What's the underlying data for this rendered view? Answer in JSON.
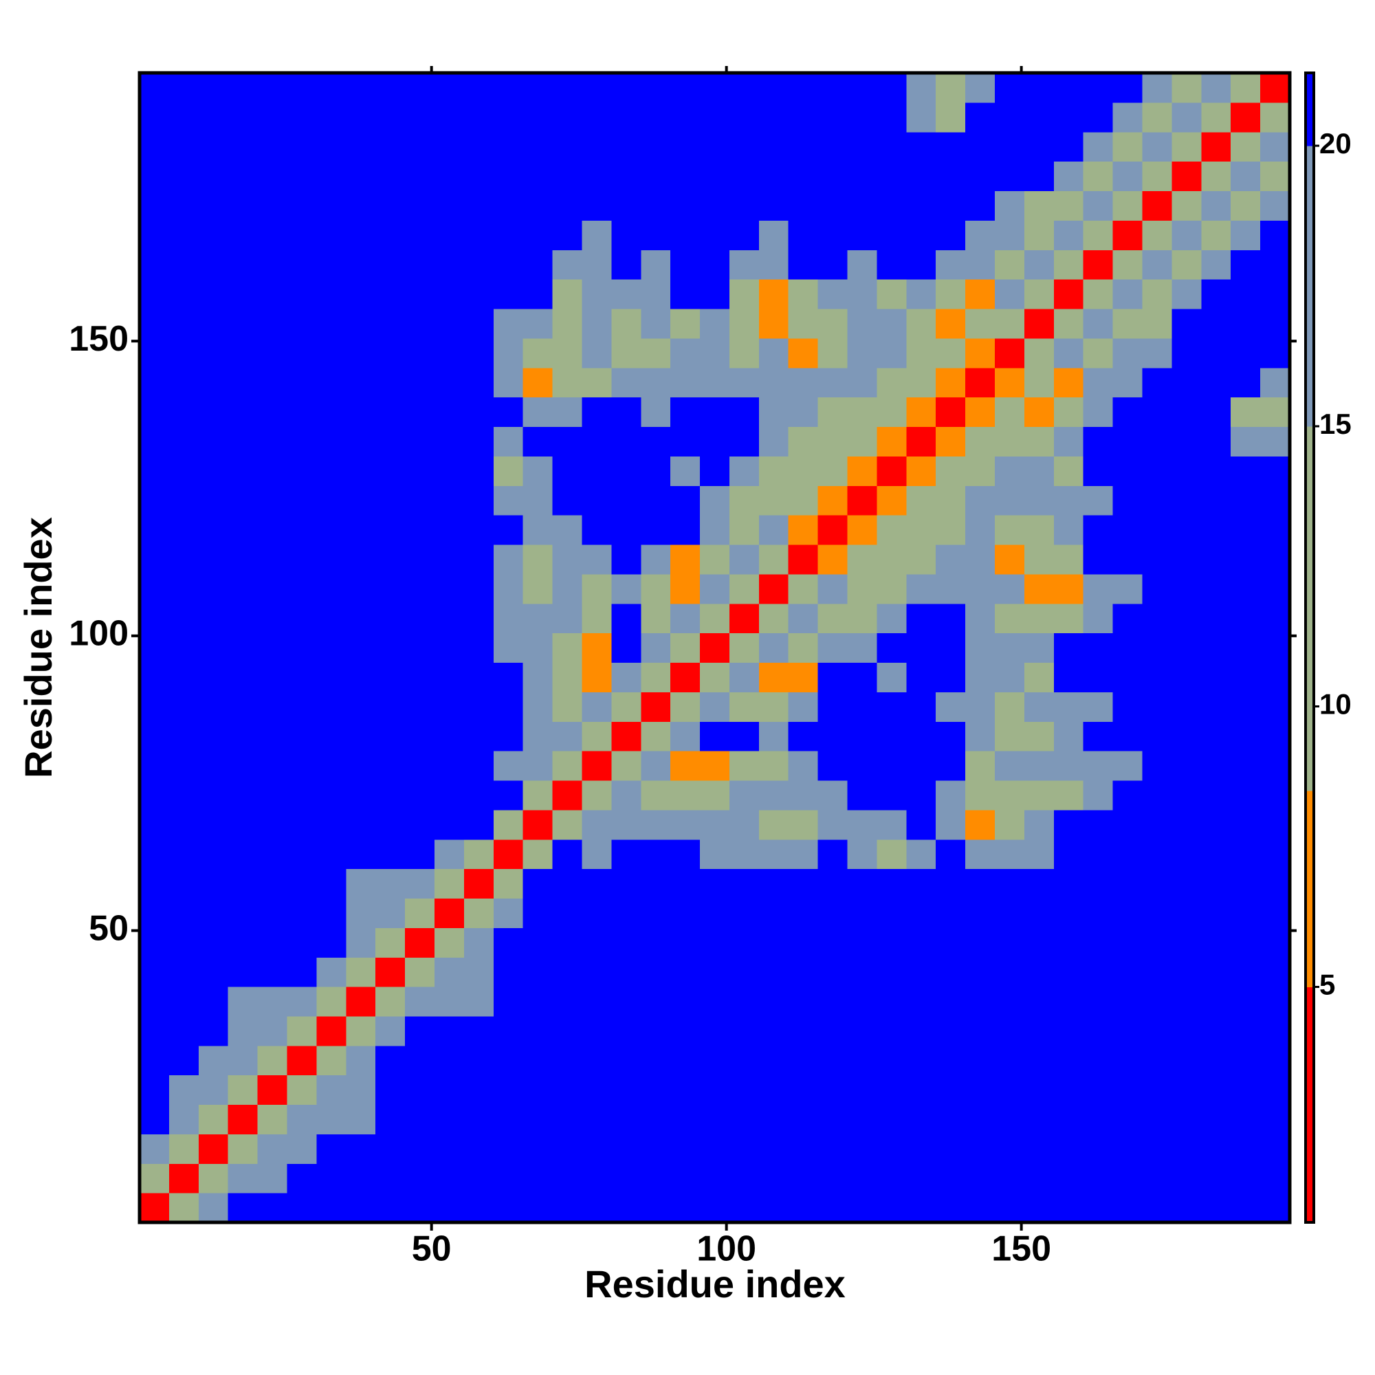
{
  "chart_data": {
    "type": "heatmap",
    "xlabel": "Residue index",
    "ylabel": "Residue index",
    "xlim": [
      0.5,
      195.5
    ],
    "ylim": [
      0.5,
      195.5
    ],
    "xticks": [
      50,
      100,
      150
    ],
    "yticks": [
      50,
      100,
      150
    ],
    "colorbar": {
      "levels": [
        0.8,
        5,
        8.5,
        15,
        20,
        21.3
      ],
      "colors": [
        "#ff0000",
        "#ff8c00",
        "#9fb38a",
        "#7e98b8",
        "#0000ff"
      ],
      "ticks": [
        5,
        10,
        15,
        20
      ]
    },
    "z": [
      [
        3,
        12,
        17,
        21,
        21,
        21,
        21,
        21,
        21,
        21,
        21,
        21,
        21,
        21,
        21,
        21,
        21,
        21,
        21,
        21,
        21,
        21,
        21,
        21,
        21,
        21,
        21,
        21,
        21,
        21,
        21,
        21,
        21,
        21,
        21,
        21,
        21,
        21,
        21
      ],
      [
        12,
        3,
        12,
        17,
        17,
        21,
        21,
        21,
        21,
        21,
        21,
        21,
        21,
        21,
        21,
        21,
        21,
        21,
        21,
        21,
        21,
        21,
        21,
        21,
        21,
        21,
        21,
        21,
        21,
        21,
        21,
        21,
        21,
        21,
        21,
        21,
        21,
        21,
        21
      ],
      [
        17,
        12,
        3,
        12,
        17,
        17,
        21,
        21,
        21,
        21,
        21,
        21,
        21,
        21,
        21,
        21,
        21,
        21,
        21,
        21,
        21,
        21,
        21,
        21,
        21,
        21,
        21,
        21,
        21,
        21,
        21,
        21,
        21,
        21,
        21,
        21,
        21,
        21,
        21
      ],
      [
        21,
        17,
        12,
        3,
        12,
        17,
        17,
        17,
        21,
        21,
        21,
        21,
        21,
        21,
        21,
        21,
        21,
        21,
        21,
        21,
        21,
        21,
        21,
        21,
        21,
        21,
        21,
        21,
        21,
        21,
        21,
        21,
        21,
        21,
        21,
        21,
        21,
        21,
        21
      ],
      [
        21,
        17,
        17,
        12,
        3,
        12,
        17,
        17,
        21,
        21,
        21,
        21,
        21,
        21,
        21,
        21,
        21,
        21,
        21,
        21,
        21,
        21,
        21,
        21,
        21,
        21,
        21,
        21,
        21,
        21,
        21,
        21,
        21,
        21,
        21,
        21,
        21,
        21,
        21
      ],
      [
        21,
        21,
        17,
        17,
        12,
        3,
        12,
        17,
        21,
        21,
        21,
        21,
        21,
        21,
        21,
        21,
        21,
        21,
        21,
        21,
        21,
        21,
        21,
        21,
        21,
        21,
        21,
        21,
        21,
        21,
        21,
        21,
        21,
        21,
        21,
        21,
        21,
        21,
        21
      ],
      [
        21,
        21,
        21,
        17,
        17,
        12,
        3,
        12,
        17,
        21,
        21,
        21,
        21,
        21,
        21,
        21,
        21,
        21,
        21,
        21,
        21,
        21,
        21,
        21,
        21,
        21,
        21,
        21,
        21,
        21,
        21,
        21,
        21,
        21,
        21,
        21,
        21,
        21,
        21
      ],
      [
        21,
        21,
        21,
        17,
        17,
        17,
        12,
        3,
        12,
        17,
        17,
        17,
        21,
        21,
        21,
        21,
        21,
        21,
        21,
        21,
        21,
        21,
        21,
        21,
        21,
        21,
        21,
        21,
        21,
        21,
        21,
        21,
        21,
        21,
        21,
        21,
        21,
        21,
        21
      ],
      [
        21,
        21,
        21,
        21,
        21,
        21,
        17,
        12,
        3,
        12,
        17,
        17,
        21,
        21,
        21,
        21,
        21,
        21,
        21,
        21,
        21,
        21,
        21,
        21,
        21,
        21,
        21,
        21,
        21,
        21,
        21,
        21,
        21,
        21,
        21,
        21,
        21,
        21,
        21
      ],
      [
        21,
        21,
        21,
        21,
        21,
        21,
        21,
        17,
        12,
        3,
        12,
        17,
        21,
        21,
        21,
        21,
        21,
        21,
        21,
        21,
        21,
        21,
        21,
        21,
        21,
        21,
        21,
        21,
        21,
        21,
        21,
        21,
        21,
        21,
        21,
        21,
        21,
        21,
        21
      ],
      [
        21,
        21,
        21,
        21,
        21,
        21,
        21,
        17,
        17,
        12,
        3,
        12,
        17,
        21,
        21,
        21,
        21,
        21,
        21,
        21,
        21,
        21,
        21,
        21,
        21,
        21,
        21,
        21,
        21,
        21,
        21,
        21,
        21,
        21,
        21,
        21,
        21,
        21,
        21
      ],
      [
        21,
        21,
        21,
        21,
        21,
        21,
        21,
        17,
        17,
        17,
        12,
        3,
        12,
        21,
        21,
        21,
        21,
        21,
        21,
        21,
        21,
        21,
        21,
        21,
        21,
        21,
        21,
        21,
        21,
        21,
        21,
        21,
        21,
        21,
        21,
        21,
        21,
        21,
        21
      ],
      [
        21,
        21,
        21,
        21,
        21,
        21,
        21,
        21,
        21,
        21,
        17,
        12,
        3,
        12,
        21,
        17,
        21,
        21,
        21,
        17,
        17,
        17,
        17,
        21,
        17,
        12,
        17,
        21,
        17,
        17,
        17,
        21,
        21,
        21,
        21,
        21,
        21,
        21,
        21
      ],
      [
        21,
        21,
        21,
        21,
        21,
        21,
        21,
        21,
        21,
        21,
        21,
        21,
        12,
        3,
        12,
        17,
        17,
        17,
        17,
        17,
        17,
        12,
        12,
        17,
        17,
        17,
        21,
        17,
        7,
        12,
        17,
        21,
        21,
        21,
        21,
        21,
        21,
        21,
        21
      ],
      [
        21,
        21,
        21,
        21,
        21,
        21,
        21,
        21,
        21,
        21,
        21,
        21,
        21,
        12,
        3,
        12,
        17,
        12,
        12,
        12,
        17,
        17,
        17,
        17,
        21,
        21,
        21,
        17,
        12,
        12,
        12,
        12,
        17,
        21,
        21,
        21,
        21,
        21,
        21
      ],
      [
        21,
        21,
        21,
        21,
        21,
        21,
        21,
        21,
        21,
        21,
        21,
        21,
        17,
        17,
        12,
        3,
        12,
        17,
        7,
        7,
        12,
        12,
        17,
        21,
        21,
        21,
        21,
        21,
        12,
        17,
        17,
        17,
        17,
        17,
        21,
        21,
        21,
        21,
        21
      ],
      [
        21,
        21,
        21,
        21,
        21,
        21,
        21,
        21,
        21,
        21,
        21,
        21,
        21,
        17,
        17,
        12,
        3,
        12,
        17,
        21,
        21,
        17,
        21,
        21,
        21,
        21,
        21,
        21,
        17,
        12,
        12,
        17,
        21,
        21,
        21,
        21,
        21,
        21,
        21
      ],
      [
        21,
        21,
        21,
        21,
        21,
        21,
        21,
        21,
        21,
        21,
        21,
        21,
        21,
        17,
        12,
        17,
        12,
        3,
        12,
        17,
        12,
        12,
        17,
        21,
        21,
        21,
        21,
        17,
        17,
        12,
        17,
        17,
        17,
        21,
        21,
        21,
        21,
        21,
        21
      ],
      [
        21,
        21,
        21,
        21,
        21,
        21,
        21,
        21,
        21,
        21,
        21,
        21,
        21,
        17,
        12,
        7,
        17,
        12,
        3,
        12,
        17,
        7,
        7,
        21,
        21,
        17,
        21,
        21,
        17,
        17,
        12,
        21,
        21,
        21,
        21,
        21,
        21,
        21,
        21
      ],
      [
        21,
        21,
        21,
        21,
        21,
        21,
        21,
        21,
        21,
        21,
        21,
        21,
        17,
        17,
        12,
        7,
        21,
        17,
        12,
        3,
        12,
        17,
        12,
        17,
        17,
        21,
        21,
        21,
        17,
        17,
        17,
        21,
        21,
        21,
        21,
        21,
        21,
        21,
        21
      ],
      [
        21,
        21,
        21,
        21,
        21,
        21,
        21,
        21,
        21,
        21,
        21,
        21,
        17,
        17,
        17,
        12,
        21,
        12,
        17,
        12,
        3,
        12,
        17,
        12,
        12,
        17,
        21,
        21,
        17,
        12,
        12,
        12,
        17,
        21,
        21,
        21,
        21,
        21,
        21
      ],
      [
        21,
        21,
        21,
        21,
        21,
        21,
        21,
        21,
        21,
        21,
        21,
        21,
        17,
        12,
        17,
        12,
        17,
        12,
        7,
        17,
        12,
        3,
        12,
        17,
        12,
        12,
        17,
        17,
        17,
        17,
        7,
        7,
        17,
        17,
        21,
        21,
        21,
        21,
        21
      ],
      [
        21,
        21,
        21,
        21,
        21,
        21,
        21,
        21,
        21,
        21,
        21,
        21,
        17,
        12,
        17,
        17,
        21,
        17,
        7,
        12,
        17,
        12,
        3,
        7,
        12,
        12,
        12,
        17,
        17,
        7,
        12,
        12,
        21,
        21,
        21,
        21,
        21,
        21,
        21
      ],
      [
        21,
        21,
        21,
        21,
        21,
        21,
        21,
        21,
        21,
        21,
        21,
        21,
        21,
        17,
        17,
        21,
        21,
        21,
        21,
        17,
        12,
        17,
        7,
        3,
        7,
        12,
        12,
        12,
        17,
        12,
        12,
        17,
        21,
        21,
        21,
        21,
        21,
        21,
        21
      ],
      [
        21,
        21,
        21,
        21,
        21,
        21,
        21,
        21,
        21,
        21,
        21,
        21,
        17,
        17,
        21,
        21,
        21,
        21,
        21,
        17,
        12,
        12,
        12,
        7,
        3,
        7,
        12,
        12,
        17,
        17,
        17,
        17,
        17,
        21,
        21,
        21,
        21,
        21,
        21
      ],
      [
        21,
        21,
        21,
        21,
        21,
        21,
        21,
        21,
        21,
        21,
        21,
        21,
        12,
        17,
        21,
        21,
        21,
        21,
        17,
        21,
        17,
        12,
        12,
        12,
        7,
        3,
        7,
        12,
        12,
        17,
        17,
        12,
        21,
        21,
        21,
        21,
        21,
        21,
        21
      ],
      [
        21,
        21,
        21,
        21,
        21,
        21,
        21,
        21,
        21,
        21,
        21,
        21,
        17,
        21,
        21,
        21,
        21,
        21,
        21,
        21,
        21,
        17,
        12,
        12,
        12,
        7,
        3,
        7,
        12,
        12,
        12,
        17,
        21,
        21,
        21,
        21,
        21,
        17,
        17
      ],
      [
        21,
        21,
        21,
        21,
        21,
        21,
        21,
        21,
        21,
        21,
        21,
        21,
        21,
        17,
        17,
        21,
        21,
        17,
        21,
        21,
        21,
        17,
        17,
        12,
        12,
        12,
        7,
        3,
        7,
        12,
        7,
        12,
        17,
        21,
        21,
        21,
        21,
        12,
        12
      ],
      [
        21,
        21,
        21,
        21,
        21,
        21,
        21,
        21,
        21,
        21,
        21,
        21,
        17,
        7,
        12,
        12,
        17,
        17,
        17,
        17,
        17,
        17,
        17,
        17,
        17,
        12,
        12,
        7,
        3,
        7,
        12,
        7,
        17,
        17,
        21,
        21,
        21,
        21,
        17
      ],
      [
        21,
        21,
        21,
        21,
        21,
        21,
        21,
        21,
        21,
        21,
        21,
        21,
        17,
        12,
        12,
        17,
        12,
        12,
        17,
        17,
        12,
        17,
        7,
        12,
        17,
        17,
        12,
        12,
        7,
        3,
        12,
        17,
        12,
        17,
        17,
        21,
        21,
        21,
        21
      ],
      [
        21,
        21,
        21,
        21,
        21,
        21,
        21,
        21,
        21,
        21,
        21,
        21,
        17,
        17,
        12,
        17,
        12,
        17,
        12,
        17,
        12,
        7,
        12,
        12,
        17,
        17,
        12,
        7,
        12,
        12,
        3,
        12,
        17,
        12,
        12,
        21,
        21,
        21,
        21
      ],
      [
        21,
        21,
        21,
        21,
        21,
        21,
        21,
        21,
        21,
        21,
        21,
        21,
        21,
        21,
        12,
        17,
        17,
        17,
        21,
        21,
        12,
        7,
        12,
        17,
        17,
        12,
        17,
        12,
        7,
        17,
        12,
        3,
        12,
        17,
        12,
        17,
        21,
        21,
        21
      ],
      [
        21,
        21,
        21,
        21,
        21,
        21,
        21,
        21,
        21,
        21,
        21,
        21,
        21,
        21,
        17,
        17,
        21,
        17,
        21,
        21,
        17,
        17,
        21,
        21,
        17,
        21,
        21,
        17,
        17,
        12,
        17,
        12,
        3,
        12,
        17,
        12,
        17,
        21,
        21
      ],
      [
        21,
        21,
        21,
        21,
        21,
        21,
        21,
        21,
        21,
        21,
        21,
        21,
        21,
        21,
        21,
        17,
        21,
        21,
        21,
        21,
        21,
        17,
        21,
        21,
        21,
        21,
        21,
        21,
        17,
        17,
        12,
        17,
        12,
        3,
        12,
        17,
        12,
        17,
        21
      ],
      [
        21,
        21,
        21,
        21,
        21,
        21,
        21,
        21,
        21,
        21,
        21,
        21,
        21,
        21,
        21,
        21,
        21,
        21,
        21,
        21,
        21,
        21,
        21,
        21,
        21,
        21,
        21,
        21,
        21,
        17,
        12,
        12,
        17,
        12,
        3,
        12,
        17,
        12,
        17
      ],
      [
        21,
        21,
        21,
        21,
        21,
        21,
        21,
        21,
        21,
        21,
        21,
        21,
        21,
        21,
        21,
        21,
        21,
        21,
        21,
        21,
        21,
        21,
        21,
        21,
        21,
        21,
        21,
        21,
        21,
        21,
        21,
        17,
        12,
        17,
        12,
        3,
        12,
        17,
        12
      ],
      [
        21,
        21,
        21,
        21,
        21,
        21,
        21,
        21,
        21,
        21,
        21,
        21,
        21,
        21,
        21,
        21,
        21,
        21,
        21,
        21,
        21,
        21,
        21,
        21,
        21,
        21,
        21,
        21,
        21,
        21,
        21,
        21,
        17,
        12,
        17,
        12,
        3,
        12,
        17
      ],
      [
        21,
        21,
        21,
        21,
        21,
        21,
        21,
        21,
        21,
        21,
        21,
        21,
        21,
        21,
        21,
        21,
        21,
        21,
        21,
        21,
        21,
        21,
        21,
        21,
        21,
        21,
        17,
        12,
        21,
        21,
        21,
        21,
        21,
        17,
        12,
        17,
        12,
        3,
        12
      ],
      [
        21,
        21,
        21,
        21,
        21,
        21,
        21,
        21,
        21,
        21,
        21,
        21,
        21,
        21,
        21,
        21,
        21,
        21,
        21,
        21,
        21,
        21,
        21,
        21,
        21,
        21,
        17,
        12,
        17,
        21,
        21,
        21,
        21,
        21,
        17,
        12,
        17,
        12,
        3
      ]
    ]
  }
}
